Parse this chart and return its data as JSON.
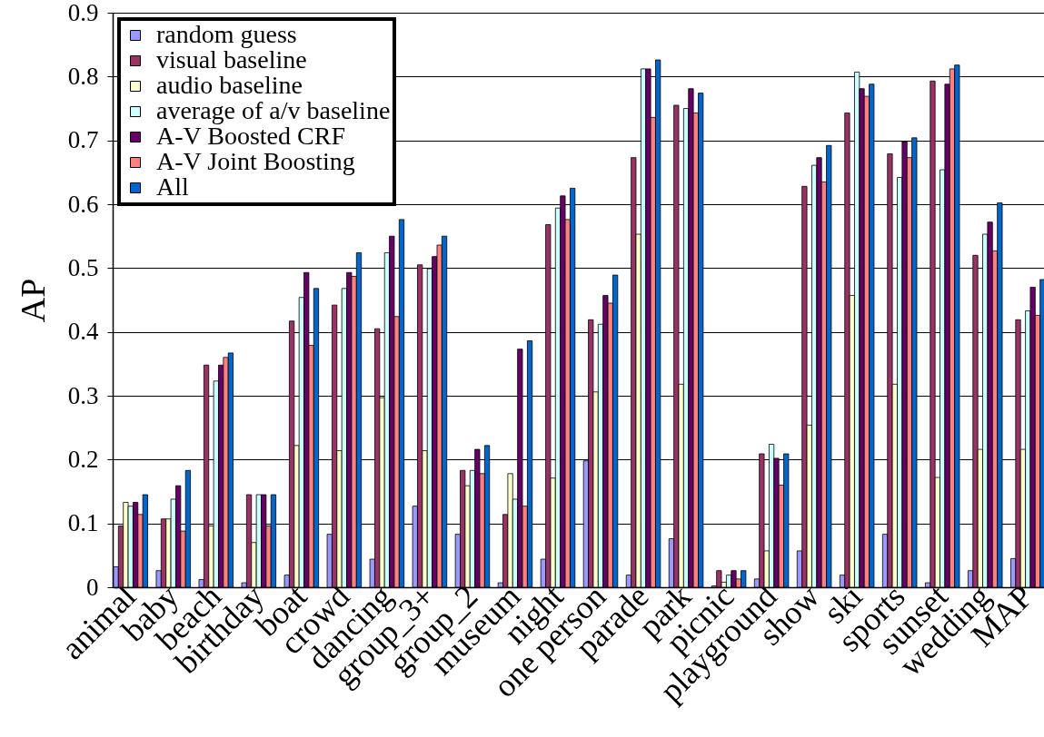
{
  "chart_data": {
    "type": "bar",
    "ylabel": "AP",
    "categories": [
      "animal",
      "baby",
      "beach",
      "birthday",
      "boat",
      "crowd",
      "dancing",
      "group_3+",
      "group_2",
      "museum",
      "night",
      "one person",
      "parade",
      "park",
      "picnic",
      "playground",
      "show",
      "ski",
      "sports",
      "sunset",
      "wedding",
      "MAP"
    ],
    "series": [
      {
        "name": "random guess",
        "color": "#9999ff",
        "values": [
          0.032,
          0.026,
          0.012,
          0.007,
          0.019,
          0.083,
          0.044,
          0.127,
          0.083,
          0.007,
          0.044,
          0.198,
          0.019,
          0.076,
          0.002,
          0.013,
          0.057,
          0.019,
          0.083,
          0.007,
          0.026,
          0.045
        ]
      },
      {
        "name": "visual baseline",
        "color": "#993366",
        "values": [
          0.096,
          0.107,
          0.348,
          0.145,
          0.417,
          0.442,
          0.405,
          0.505,
          0.183,
          0.114,
          0.568,
          0.419,
          0.673,
          0.755,
          0.026,
          0.209,
          0.628,
          0.743,
          0.679,
          0.793,
          0.52,
          0.419
        ]
      },
      {
        "name": "audio baseline",
        "color": "#ffffcc",
        "values": [
          0.133,
          0.107,
          0.096,
          0.07,
          0.222,
          0.214,
          0.297,
          0.214,
          0.159,
          0.178,
          0.171,
          0.306,
          0.553,
          0.318,
          0.008,
          0.057,
          0.254,
          0.457,
          0.318,
          0.172,
          0.216,
          0.216
        ]
      },
      {
        "name": "average of a/v baseline",
        "color": "#ccffff",
        "values": [
          0.127,
          0.138,
          0.323,
          0.145,
          0.454,
          0.468,
          0.524,
          0.499,
          0.183,
          0.138,
          0.594,
          0.412,
          0.812,
          0.75,
          0.019,
          0.224,
          0.661,
          0.807,
          0.642,
          0.654,
          0.553,
          0.433
        ]
      },
      {
        "name": "A-V Boosted CRF",
        "color": "#660066",
        "values": [
          0.133,
          0.159,
          0.348,
          0.145,
          0.493,
          0.493,
          0.55,
          0.518,
          0.216,
          0.373,
          0.613,
          0.457,
          0.812,
          0.781,
          0.026,
          0.202,
          0.673,
          0.781,
          0.698,
          0.788,
          0.572,
          0.47
        ]
      },
      {
        "name": "A-V Joint Boosting",
        "color": "#ff8080",
        "values": [
          0.114,
          0.088,
          0.36,
          0.096,
          0.379,
          0.487,
          0.424,
          0.536,
          0.178,
          0.127,
          0.576,
          0.445,
          0.736,
          0.743,
          0.013,
          0.16,
          0.635,
          0.769,
          0.673,
          0.812,
          0.527,
          0.426
        ]
      },
      {
        "name": "All",
        "color": "#0066cc",
        "values": [
          0.145,
          0.183,
          0.367,
          0.145,
          0.468,
          0.524,
          0.576,
          0.55,
          0.222,
          0.386,
          0.625,
          0.489,
          0.826,
          0.774,
          0.026,
          0.209,
          0.692,
          0.788,
          0.704,
          0.818,
          0.602,
          0.482
        ]
      }
    ],
    "ylim": [
      0,
      0.9
    ],
    "yticks": [
      0,
      0.1,
      0.2,
      0.3,
      0.4,
      0.5,
      0.6,
      0.7,
      0.8,
      0.9
    ],
    "grid": "y",
    "legend": "top left"
  }
}
